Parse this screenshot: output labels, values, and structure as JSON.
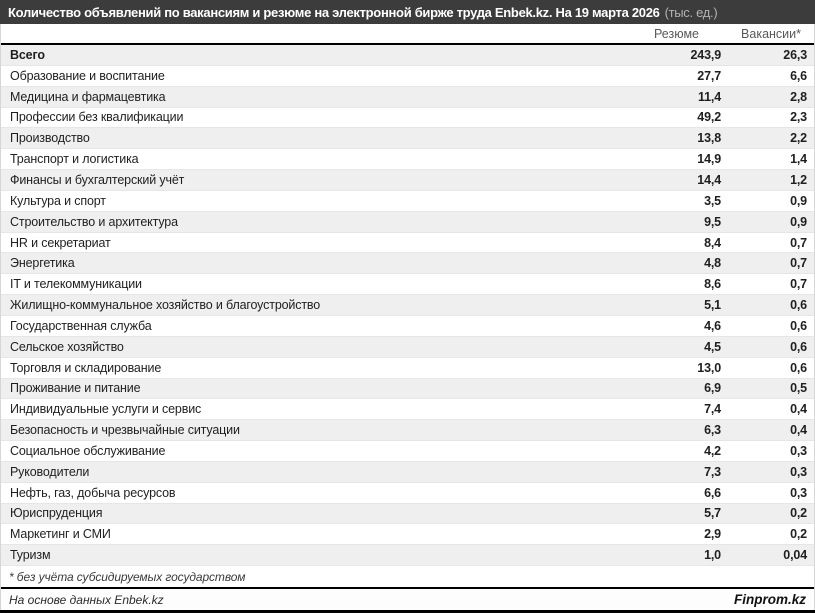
{
  "header": {
    "title_main": "Количество объявлений по вакансиям и резюме на электронной бирже труда Enbek.kz. На 19 марта 2026",
    "title_units": "(тыс. ед.)"
  },
  "chart_data": {
    "type": "table",
    "title": "Количество объявлений по вакансиям и резюме на электронной бирже труда Enbek.kz. На 19 марта 2026 (тыс. ед.)",
    "unit": "тыс. ед.",
    "columns": [
      "Резюме",
      "Вакансии*"
    ],
    "rows": [
      {
        "label": "Всего",
        "resume": "243,9",
        "vacancies": "26,3"
      },
      {
        "label": "Образование и воспитание",
        "resume": "27,7",
        "vacancies": "6,6"
      },
      {
        "label": "Медицина и фармацевтика",
        "resume": "11,4",
        "vacancies": "2,8"
      },
      {
        "label": "Профессии без квалификации",
        "resume": "49,2",
        "vacancies": "2,3"
      },
      {
        "label": "Производство",
        "resume": "13,8",
        "vacancies": "2,2"
      },
      {
        "label": "Транспорт и логистика",
        "resume": "14,9",
        "vacancies": "1,4"
      },
      {
        "label": "Финансы и бухгалтерский учёт",
        "resume": "14,4",
        "vacancies": "1,2"
      },
      {
        "label": "Культура и спорт",
        "resume": "3,5",
        "vacancies": "0,9"
      },
      {
        "label": "Строительство и архитектура",
        "resume": "9,5",
        "vacancies": "0,9"
      },
      {
        "label": "HR и секретариат",
        "resume": "8,4",
        "vacancies": "0,7"
      },
      {
        "label": "Энергетика",
        "resume": "4,8",
        "vacancies": "0,7"
      },
      {
        "label": "IT и телекоммуникации",
        "resume": "8,6",
        "vacancies": "0,7"
      },
      {
        "label": "Жилищно-коммунальное хозяйство и благоустройство",
        "resume": "5,1",
        "vacancies": "0,6"
      },
      {
        "label": "Государственная служба",
        "resume": "4,6",
        "vacancies": "0,6"
      },
      {
        "label": "Сельское хозяйство",
        "resume": "4,5",
        "vacancies": "0,6"
      },
      {
        "label": "Торговля и складирование",
        "resume": "13,0",
        "vacancies": "0,6"
      },
      {
        "label": "Проживание и питание",
        "resume": "6,9",
        "vacancies": "0,5"
      },
      {
        "label": "Индивидуальные услуги и сервис",
        "resume": "7,4",
        "vacancies": "0,4"
      },
      {
        "label": "Безопасность и чрезвычайные ситуации",
        "resume": "6,3",
        "vacancies": "0,4"
      },
      {
        "label": "Социальное обслуживание",
        "resume": "4,2",
        "vacancies": "0,3"
      },
      {
        "label": "Руководители",
        "resume": "7,3",
        "vacancies": "0,3"
      },
      {
        "label": "Нефть, газ, добыча ресурсов",
        "resume": "6,6",
        "vacancies": "0,3"
      },
      {
        "label": "Юриспруденция",
        "resume": "5,7",
        "vacancies": "0,2"
      },
      {
        "label": "Маркетинг и СМИ",
        "resume": "2,9",
        "vacancies": "0,2"
      },
      {
        "label": "Туризм",
        "resume": "1,0",
        "vacancies": "0,04"
      }
    ]
  },
  "footnote": "* без учёта субсидируемых государством",
  "footer": {
    "source": "На основе данных Enbek.kz",
    "brand": "Finprom.kz"
  },
  "colors": {
    "title-bar-bg": "#3c3c3c",
    "title-units": "#b3b3b3",
    "header-text": "#595959",
    "stripe": "#efefef",
    "text": "#1f1f1f"
  }
}
